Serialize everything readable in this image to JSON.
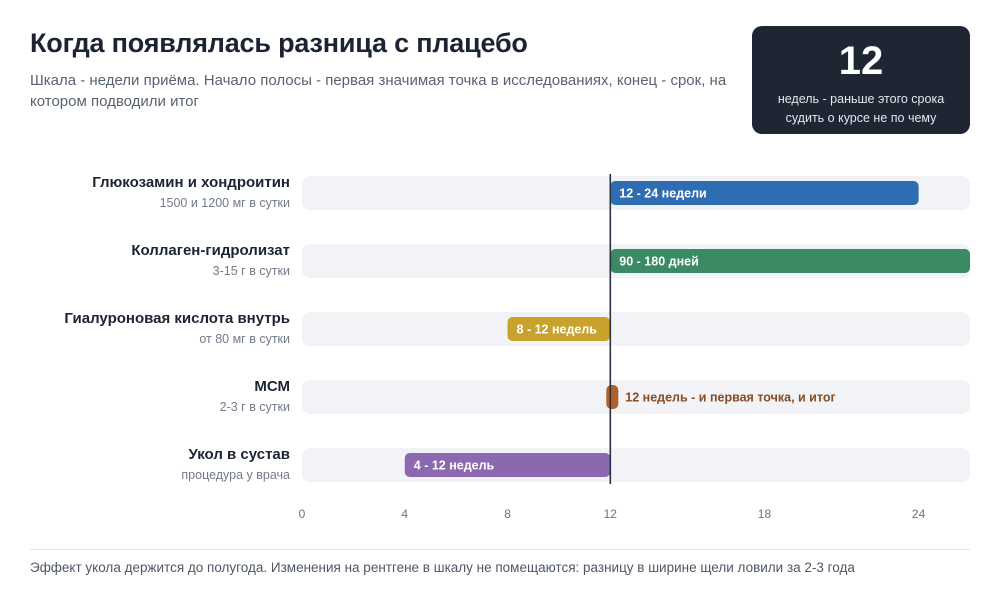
{
  "header": {
    "title": "Когда появлялась разница с плацебо",
    "subtitle": "Шкала - недели приёма. Начало полосы - первая значимая точка в исследованиях, конец - срок, на котором подводили итог"
  },
  "stat": {
    "number": "12",
    "caption": "недель - раньше этого срока судить о курсе не по чему"
  },
  "chart_data": {
    "type": "bar",
    "orientation": "horizontal-range",
    "xlim": [
      0,
      26
    ],
    "xticks": [
      0,
      4,
      8,
      12,
      18,
      24
    ],
    "reference_line": 12,
    "grid": false,
    "rows": [
      {
        "name": "Глюкозамин и хондроитин",
        "dose": "1500 и 1200 мг в сутки",
        "start": 12,
        "end": 24,
        "label": "12 - 24 недели",
        "color": "#2f6db3",
        "label_position": "inside"
      },
      {
        "name": "Коллаген-гидролизат",
        "dose": "3-15 г в сутки",
        "start": 12,
        "end": 26,
        "label": "90 - 180 дней",
        "color": "#3a8a64",
        "label_position": "inside"
      },
      {
        "name": "Гиалуроновая кислота внутрь",
        "dose": "от 80 мг в сутки",
        "start": 8,
        "end": 12,
        "label": "8 - 12 недель",
        "color": "#c9a22e",
        "label_position": "inside"
      },
      {
        "name": "МСМ",
        "dose": "2-3 г в сутки",
        "start": 12,
        "end": 12,
        "label": "12 недель - и первая точка, и итог",
        "color": "#b0612b",
        "label_position": "outside"
      },
      {
        "name": "Укол в сустав",
        "dose": "процедура у врача",
        "start": 4,
        "end": 12,
        "label": "4 - 12 недель",
        "color": "#8b68b0",
        "label_position": "inside"
      }
    ]
  },
  "footnote": "Эффект укола держится до полугода. Изменения на рентгене в шкалу не помещаются: разницу в ширине щели ловили за 2-3 года"
}
